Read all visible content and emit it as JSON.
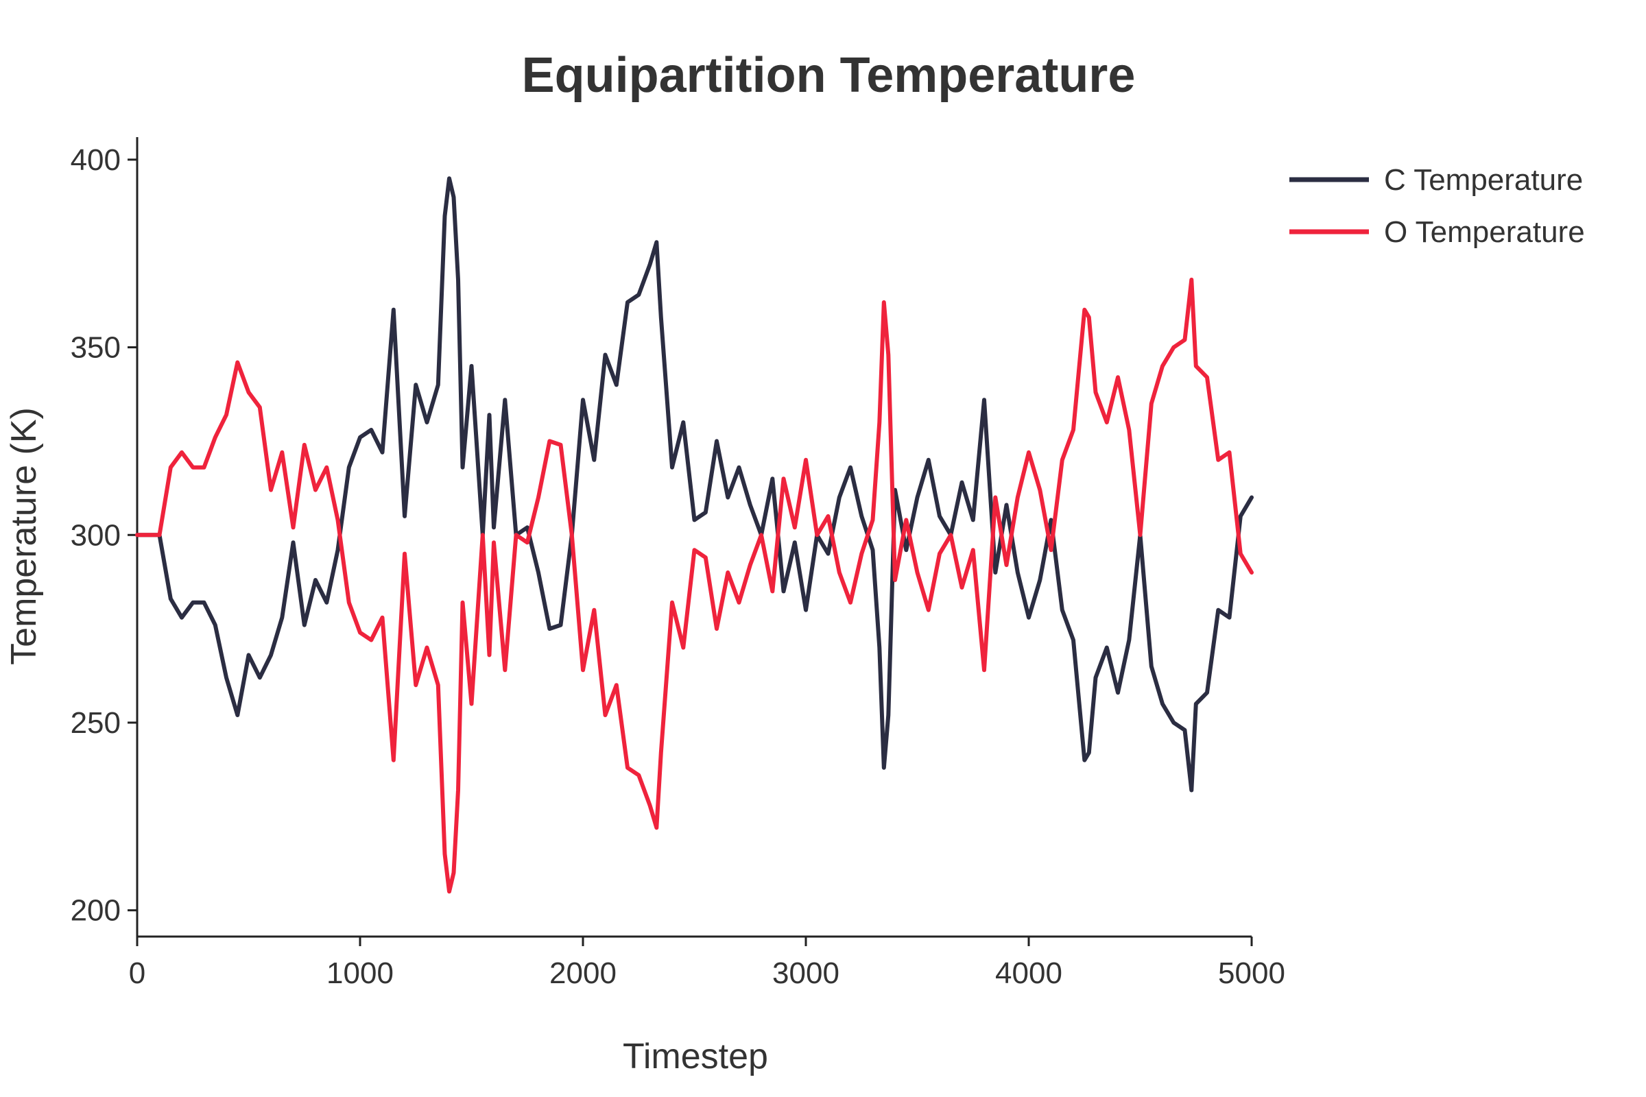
{
  "chart_data": {
    "type": "line",
    "title": "Equipartition Temperature",
    "xlabel": "Timestep",
    "ylabel": "Temperature (K)",
    "xlim": [
      0,
      5000
    ],
    "ylim": [
      193,
      406
    ],
    "xticks": [
      0,
      1000,
      2000,
      3000,
      4000,
      5000
    ],
    "yticks": [
      200,
      250,
      300,
      350,
      400
    ],
    "grid": false,
    "legend_position": "top-right",
    "series": [
      {
        "name": "C Temperature",
        "color": "#2b2d42",
        "x": [
          0,
          100,
          150,
          200,
          250,
          300,
          350,
          400,
          450,
          500,
          550,
          600,
          650,
          700,
          750,
          800,
          850,
          900,
          950,
          1000,
          1050,
          1100,
          1150,
          1200,
          1250,
          1300,
          1350,
          1380,
          1400,
          1420,
          1440,
          1460,
          1500,
          1550,
          1580,
          1600,
          1650,
          1700,
          1750,
          1800,
          1850,
          1900,
          1950,
          2000,
          2050,
          2100,
          2150,
          2200,
          2250,
          2300,
          2330,
          2350,
          2400,
          2450,
          2500,
          2550,
          2600,
          2650,
          2700,
          2750,
          2800,
          2850,
          2900,
          2950,
          3000,
          3050,
          3100,
          3150,
          3200,
          3250,
          3300,
          3330,
          3350,
          3370,
          3400,
          3450,
          3500,
          3550,
          3600,
          3650,
          3700,
          3750,
          3800,
          3850,
          3900,
          3950,
          4000,
          4050,
          4100,
          4150,
          4200,
          4250,
          4270,
          4300,
          4350,
          4400,
          4450,
          4500,
          4550,
          4600,
          4650,
          4700,
          4730,
          4750,
          4800,
          4850,
          4900,
          4950,
          5000
        ],
        "values": [
          300,
          300,
          283,
          278,
          282,
          282,
          276,
          262,
          252,
          268,
          262,
          268,
          278,
          298,
          276,
          288,
          282,
          296,
          318,
          326,
          328,
          322,
          360,
          305,
          340,
          330,
          340,
          385,
          395,
          390,
          368,
          318,
          345,
          300,
          332,
          302,
          336,
          300,
          302,
          290,
          275,
          276,
          300,
          336,
          320,
          348,
          340,
          362,
          364,
          372,
          378,
          358,
          318,
          330,
          304,
          306,
          325,
          310,
          318,
          308,
          300,
          315,
          285,
          298,
          280,
          300,
          295,
          310,
          318,
          305,
          296,
          270,
          238,
          252,
          312,
          296,
          310,
          320,
          305,
          300,
          314,
          304,
          336,
          290,
          308,
          290,
          278,
          288,
          304,
          280,
          272,
          240,
          242,
          262,
          270,
          258,
          272,
          300,
          265,
          255,
          250,
          248,
          232,
          255,
          258,
          280,
          278,
          305,
          310
        ]
      },
      {
        "name": "O Temperature",
        "color": "#ef233c",
        "x": [
          0,
          100,
          150,
          200,
          250,
          300,
          350,
          400,
          450,
          500,
          550,
          600,
          650,
          700,
          750,
          800,
          850,
          900,
          950,
          1000,
          1050,
          1100,
          1150,
          1200,
          1250,
          1300,
          1350,
          1380,
          1400,
          1420,
          1440,
          1460,
          1500,
          1550,
          1580,
          1600,
          1650,
          1700,
          1750,
          1800,
          1850,
          1900,
          1950,
          2000,
          2050,
          2100,
          2150,
          2200,
          2250,
          2300,
          2330,
          2350,
          2400,
          2450,
          2500,
          2550,
          2600,
          2650,
          2700,
          2750,
          2800,
          2850,
          2900,
          2950,
          3000,
          3050,
          3100,
          3150,
          3200,
          3250,
          3300,
          3330,
          3350,
          3370,
          3400,
          3450,
          3500,
          3550,
          3600,
          3650,
          3700,
          3750,
          3800,
          3850,
          3900,
          3950,
          4000,
          4050,
          4100,
          4150,
          4200,
          4250,
          4270,
          4300,
          4350,
          4400,
          4450,
          4500,
          4550,
          4600,
          4650,
          4700,
          4730,
          4750,
          4800,
          4850,
          4900,
          4950,
          5000
        ],
        "values": [
          300,
          300,
          318,
          322,
          318,
          318,
          326,
          332,
          346,
          338,
          334,
          312,
          322,
          302,
          324,
          312,
          318,
          304,
          282,
          274,
          272,
          278,
          240,
          295,
          260,
          270,
          260,
          215,
          205,
          210,
          232,
          282,
          255,
          300,
          268,
          298,
          264,
          300,
          298,
          310,
          325,
          324,
          300,
          264,
          280,
          252,
          260,
          238,
          236,
          228,
          222,
          242,
          282,
          270,
          296,
          294,
          275,
          290,
          282,
          292,
          300,
          285,
          315,
          302,
          320,
          300,
          305,
          290,
          282,
          295,
          304,
          330,
          362,
          348,
          288,
          304,
          290,
          280,
          295,
          300,
          286,
          296,
          264,
          310,
          292,
          310,
          322,
          312,
          296,
          320,
          328,
          360,
          358,
          338,
          330,
          342,
          328,
          300,
          335,
          345,
          350,
          352,
          368,
          345,
          342,
          320,
          322,
          295,
          290
        ]
      }
    ]
  }
}
